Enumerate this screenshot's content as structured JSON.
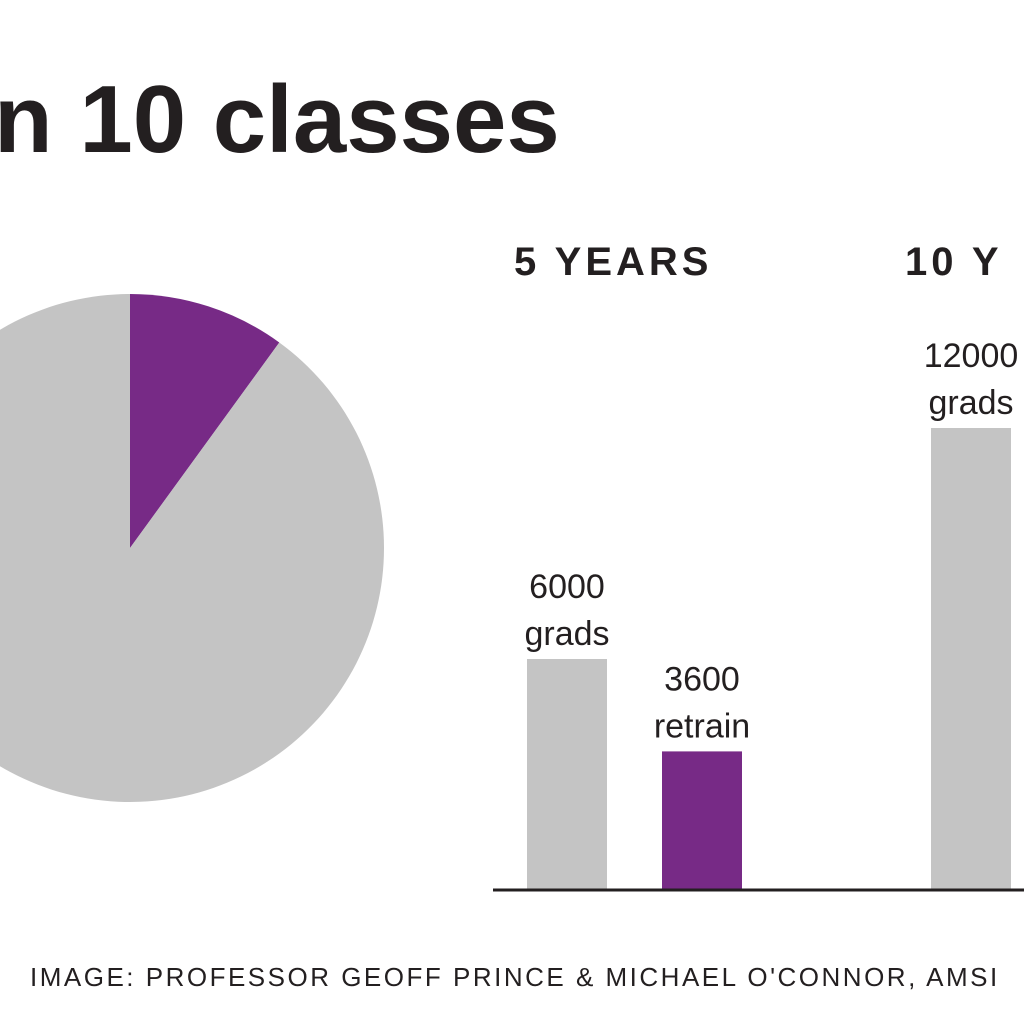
{
  "title": "n 10 classes",
  "credit": "IMAGE: PROFESSOR GEOFF PRINCE & MICHAEL O'CONNOR, AMSI",
  "colors": {
    "grads": "#c4c4c4",
    "retrain": "#772a86",
    "text": "#231f20",
    "axis": "#231f20"
  },
  "chart_data": [
    {
      "type": "pie",
      "slices": [
        {
          "label": "",
          "value": 10,
          "color": "#772a86"
        },
        {
          "label": "",
          "value": 90,
          "color": "#c4c4c4"
        }
      ]
    },
    {
      "type": "bar",
      "categories": [
        "5 YEARS",
        "10 Y"
      ],
      "ylim": [
        0,
        13000
      ],
      "series": [
        {
          "key": "grads",
          "values": [
            6000,
            12000
          ],
          "labels": [
            [
              "6000",
              "grads"
            ],
            [
              "12000",
              "grads"
            ]
          ],
          "color": "#c4c4c4"
        },
        {
          "key": "retrain",
          "values": [
            3600,
            null
          ],
          "labels": [
            [
              "3600",
              "retrain"
            ],
            null
          ],
          "color": "#772a86"
        }
      ]
    }
  ]
}
